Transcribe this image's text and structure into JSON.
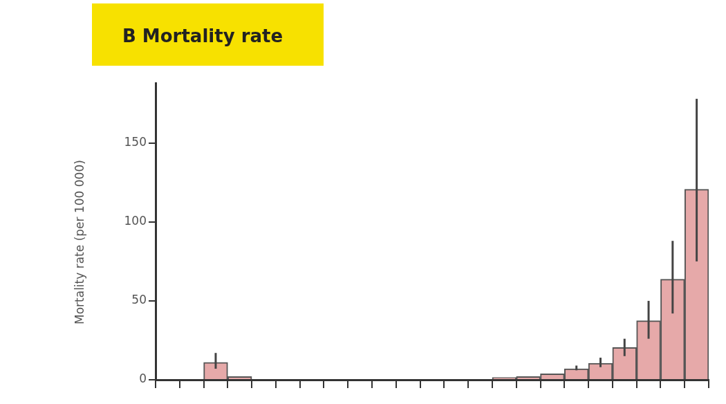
{
  "chart_data": {
    "type": "bar",
    "title": "B Mortality rate",
    "ylabel": "Mortality rate (per 100 000)",
    "categories": [
      null,
      null,
      null,
      null,
      null,
      null,
      null,
      null,
      null,
      null,
      null,
      null,
      null,
      null,
      null,
      null,
      null,
      null,
      null,
      null,
      null,
      null,
      null
    ],
    "values": [
      0,
      0,
      11,
      2,
      0,
      0,
      0,
      0,
      0,
      0,
      null,
      null,
      null,
      null,
      1.5,
      2,
      3.8,
      7,
      10.5,
      20.5,
      37.4,
      63.7,
      120.7
    ],
    "errors": [
      null,
      null,
      [
        7,
        17
      ],
      null,
      null,
      null,
      null,
      null,
      null,
      null,
      null,
      null,
      null,
      null,
      null,
      null,
      null,
      [
        6,
        9
      ],
      [
        8,
        14
      ],
      [
        15,
        26
      ],
      [
        26,
        50
      ],
      [
        42,
        88
      ],
      [
        75,
        178
      ]
    ],
    "color": "#e6a9a9",
    "ylim": [
      0,
      188
    ],
    "yticks": [
      0,
      50,
      100,
      150
    ],
    "tick_labels": "y",
    "grid": false
  }
}
